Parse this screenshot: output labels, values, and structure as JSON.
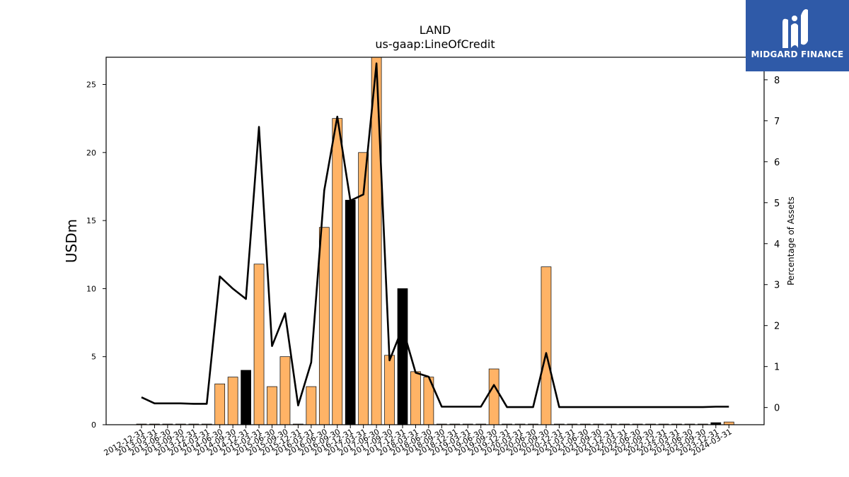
{
  "chart_data": {
    "type": "bar",
    "title": "LAND",
    "subtitle": "us-gaap:LineOfCredit",
    "ylabel": "USDm",
    "y2label": "Percentage of Assets",
    "ylim": [
      0,
      27
    ],
    "y2lim": [
      -0.42,
      8.55
    ],
    "yticks": [
      0,
      5,
      10,
      15,
      20,
      25
    ],
    "y2ticks": [
      0,
      1,
      2,
      3,
      4,
      5,
      6,
      7,
      8
    ],
    "categories": [
      "2012-12-31",
      "2013-03-31",
      "2013-06-30",
      "2013-09-30",
      "2013-12-31",
      "2014-03-31",
      "2014-06-30",
      "2014-09-30",
      "2014-12-31",
      "2015-03-31",
      "2015-06-30",
      "2015-09-30",
      "2015-12-31",
      "2016-03-31",
      "2016-06-30",
      "2016-09-30",
      "2016-12-31",
      "2017-03-31",
      "2017-06-30",
      "2017-09-30",
      "2017-12-31",
      "2018-03-31",
      "2018-06-30",
      "2018-09-30",
      "2018-12-31",
      "2019-03-31",
      "2019-06-30",
      "2019-09-30",
      "2019-12-31",
      "2020-03-31",
      "2020-06-30",
      "2020-09-30",
      "2020-12-31",
      "2021-03-31",
      "2021-06-30",
      "2021-09-30",
      "2021-12-31",
      "2022-03-31",
      "2022-06-30",
      "2022-09-30",
      "2022-12-31",
      "2023-03-31",
      "2023-06-30",
      "2023-09-30",
      "2023-12-31",
      "2024-03-31"
    ],
    "series": [
      {
        "type": "bar",
        "axis": "left",
        "values": [
          0.05,
          0.05,
          0.05,
          0.05,
          0.05,
          0.05,
          3.0,
          3.5,
          4.0,
          11.8,
          2.8,
          5.0,
          0.05,
          2.8,
          14.5,
          22.5,
          16.5,
          20.0,
          27.0,
          5.1,
          10.0,
          3.9,
          3.5,
          0.05,
          0.05,
          0.05,
          0.05,
          4.1,
          0.05,
          0.05,
          0.05,
          11.6,
          0.05,
          0.05,
          0.05,
          0.05,
          0.05,
          0.05,
          0.05,
          0.05,
          0.05,
          0.05,
          0.05,
          0.05,
          0.15,
          0.2
        ],
        "colors": [
          "#ffb366",
          "#ffb366",
          "#ffb366",
          "#ffb366",
          "#ffb366",
          "#ffb366",
          "#ffb366",
          "#ffb366",
          "#000000",
          "#ffb366",
          "#ffb366",
          "#ffb366",
          "#ffb366",
          "#ffb366",
          "#ffb366",
          "#ffb366",
          "#000000",
          "#ffb366",
          "#ffb366",
          "#ffb366",
          "#000000",
          "#ffb366",
          "#ffb366",
          "#ffb366",
          "#ffb366",
          "#ffb366",
          "#ffb366",
          "#ffb366",
          "#ffb366",
          "#ffb366",
          "#ffb366",
          "#ffb366",
          "#ffb366",
          "#ffb366",
          "#ffb366",
          "#ffb366",
          "#ffb366",
          "#ffb366",
          "#ffb366",
          "#ffb366",
          "#ffb366",
          "#ffb366",
          "#ffb366",
          "#ffb366",
          "#000000",
          "#ffb366"
        ]
      },
      {
        "type": "line",
        "axis": "right",
        "color": "#000000",
        "values": [
          0.25,
          0.1,
          0.1,
          0.1,
          0.09,
          0.09,
          3.2,
          2.9,
          2.65,
          6.85,
          1.5,
          2.3,
          0.05,
          1.1,
          5.3,
          7.1,
          5.05,
          5.2,
          8.4,
          1.15,
          1.95,
          0.85,
          0.75,
          0.02,
          0.02,
          0.02,
          0.02,
          0.55,
          0.01,
          0.01,
          0.01,
          1.33,
          0.01,
          0.01,
          0.01,
          0.01,
          0.01,
          0.01,
          0.01,
          0.01,
          0.01,
          0.01,
          0.01,
          0.01,
          0.02,
          0.02
        ]
      }
    ],
    "bar_color": "#ffb366",
    "highlight_color": "#000000",
    "grid": false
  },
  "logo": {
    "brand": "MIDGARD FINANCE",
    "background": "#2f5aa8"
  }
}
